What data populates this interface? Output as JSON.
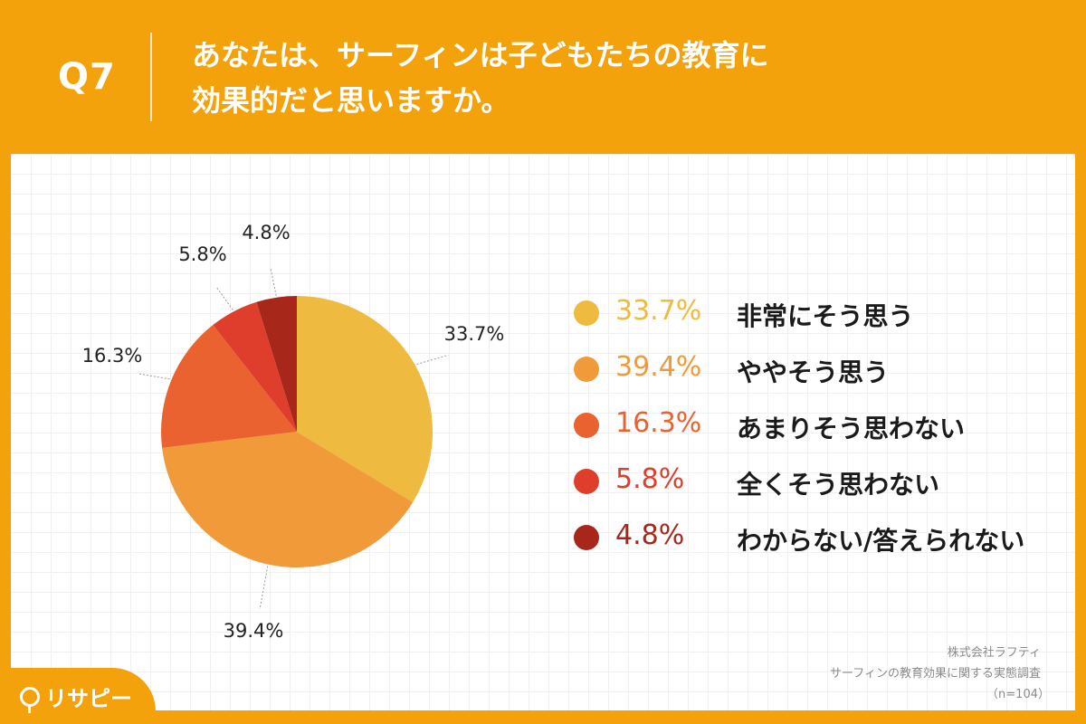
{
  "header": {
    "question_number": "Q7",
    "question_line1": "あなたは、サーフィンは子どもたちの教育に",
    "question_line2": "効果的だと思いますか。"
  },
  "chart_data": {
    "type": "pie",
    "title": "あなたは、サーフィンは子どもたちの教育に効果的だと思いますか。",
    "categories": [
      "非常にそう思う",
      "ややそう思う",
      "あまりそう思わない",
      "全くそう思わない",
      "わからない/答えられない"
    ],
    "values": [
      33.7,
      39.4,
      16.3,
      5.8,
      4.8
    ],
    "value_labels": [
      "33.7%",
      "39.4%",
      "16.3%",
      "5.8%",
      "4.8%"
    ],
    "colors": [
      "#EEBA3F",
      "#F19A3A",
      "#EA6230",
      "#DE3E2B",
      "#A7281B"
    ],
    "start": "12 o'clock, clockwise",
    "legend_position": "right"
  },
  "credits": {
    "company": "株式会社ラフティ",
    "survey": "サーフィンの教育効果に関する実態調査",
    "sample": "（n=104）"
  },
  "logo": {
    "text": "リサピー"
  }
}
